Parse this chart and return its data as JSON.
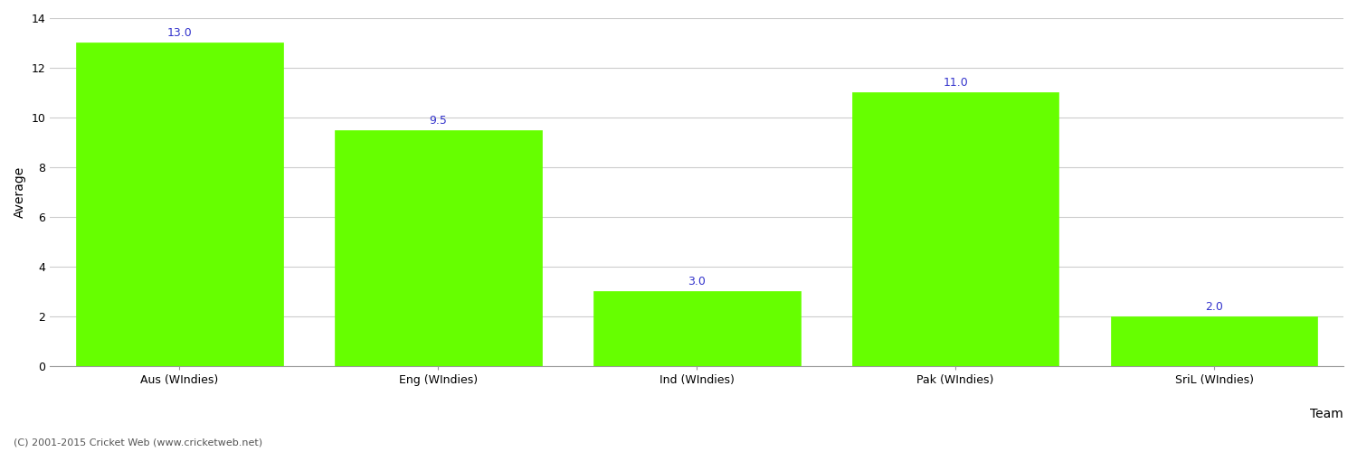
{
  "categories": [
    "Aus (WIndies)",
    "Eng (WIndies)",
    "Ind (WIndies)",
    "Pak (WIndies)",
    "SriL (WIndies)"
  ],
  "values": [
    13.0,
    9.5,
    3.0,
    11.0,
    2.0
  ],
  "bar_color": "#66ff00",
  "bar_edge_color": "#66ff00",
  "label_color": "#3333cc",
  "ylabel": "Average",
  "xlabel": "Team",
  "ylim": [
    0,
    14
  ],
  "yticks": [
    0,
    2,
    4,
    6,
    8,
    10,
    12,
    14
  ],
  "label_fontsize": 9,
  "axis_label_fontsize": 10,
  "tick_fontsize": 9,
  "footer_text": "(C) 2001-2015 Cricket Web (www.cricketweb.net)",
  "footer_fontsize": 8,
  "background_color": "#ffffff",
  "grid_color": "#cccccc"
}
